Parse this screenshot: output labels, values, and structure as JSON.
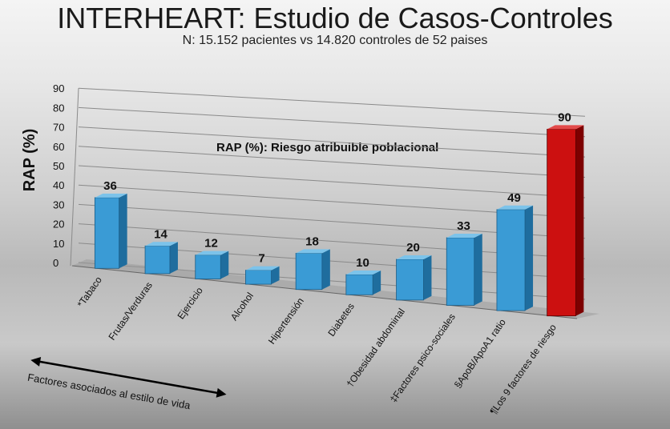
{
  "title": "INTERHEART: Estudio de Casos-Controles",
  "subtitle": "N:  15.152 pacientes vs 14.820 controles de  52 paises",
  "annotation": "RAP (%): Riesgo atribuible poblacional",
  "factors_label": "Factores asociados al estilo de vida",
  "colors": {
    "bar": "#3a9bd5",
    "bar_highlight": "#cc1010",
    "grid": "#8a8a8a"
  },
  "chart_data": {
    "type": "bar",
    "title": "",
    "xlabel": "",
    "ylabel": "RAP (%)",
    "ylim": [
      0,
      90
    ],
    "yticks": [
      0,
      10,
      20,
      30,
      40,
      50,
      60,
      70,
      80,
      90
    ],
    "categories": [
      "*Tabaco",
      "Frutas/Verduras",
      "Ejercicio",
      "Alcohol",
      "Hipertensión",
      "Diabetes",
      "†Obesidad abdominal",
      "‡Factores psico-sociales",
      "§ApoB/ApoA1 ratio",
      "¶Los 9 factores de riesgo"
    ],
    "values": [
      36,
      14,
      12,
      7,
      18,
      10,
      20,
      33,
      49,
      90
    ],
    "highlight_index": 9,
    "grid": true
  }
}
